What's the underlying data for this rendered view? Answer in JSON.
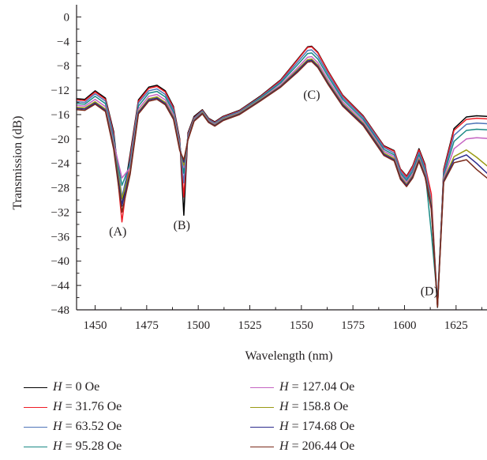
{
  "chart_data": {
    "type": "line",
    "title": "",
    "xlabel": "Wavelength (nm)",
    "ylabel": "Transmission (dB)",
    "xlim": [
      1441,
      1640
    ],
    "ylim": [
      -48,
      2
    ],
    "x_ticks": [
      1450,
      1475,
      1500,
      1525,
      1550,
      1575,
      1600,
      1625
    ],
    "y_ticks": [
      0,
      -4,
      -8,
      -12,
      -16,
      -20,
      -24,
      -28,
      -32,
      -36,
      -40,
      -44,
      -48
    ],
    "grid": false,
    "legend_position": "bottom",
    "annotations": [
      {
        "text": "(A)",
        "x": 1461,
        "y": -35.8
      },
      {
        "text": "(B)",
        "x": 1492,
        "y": -34.8
      },
      {
        "text": "(C)",
        "x": 1555,
        "y": -13.4
      },
      {
        "text": "(D)",
        "x": 1612,
        "y": -45.6
      }
    ],
    "x": [
      1441,
      1445,
      1450,
      1455,
      1459,
      1463,
      1467,
      1471,
      1476,
      1480,
      1484,
      1488,
      1491,
      1493,
      1495,
      1498,
      1502,
      1505,
      1508,
      1512,
      1520,
      1530,
      1540,
      1548,
      1553,
      1555,
      1558,
      1563,
      1570,
      1580,
      1590,
      1595,
      1598,
      1601,
      1604,
      1607,
      1610,
      1613,
      1616,
      1619,
      1624,
      1630,
      1635,
      1640
    ],
    "series": [
      {
        "name": "H = 0 Oe",
        "color": "#000000",
        "values": [
          -13.4,
          -13.5,
          -12.1,
          -13.3,
          -18.8,
          -31.0,
          -22.5,
          -13.6,
          -11.5,
          -11.2,
          -12.1,
          -14.7,
          -20.0,
          -32.5,
          -19.0,
          -16.3,
          -15.2,
          -16.6,
          -17.2,
          -16.3,
          -15.3,
          -13.0,
          -10.3,
          -7.0,
          -4.9,
          -4.8,
          -5.8,
          -8.9,
          -12.8,
          -16.2,
          -21.1,
          -21.9,
          -24.9,
          -26.1,
          -24.4,
          -21.6,
          -24.2,
          -30.8,
          -47.6,
          -25.0,
          -18.3,
          -16.4,
          -16.2,
          -16.3
        ]
      },
      {
        "name": "H = 31.76 Oe",
        "color": "#ee1c25",
        "values": [
          -13.6,
          -13.7,
          -12.3,
          -13.5,
          -19.2,
          -33.6,
          -23.0,
          -13.8,
          -11.7,
          -11.4,
          -12.3,
          -14.9,
          -20.3,
          -29.5,
          -19.2,
          -16.5,
          -15.3,
          -16.7,
          -17.3,
          -16.4,
          -15.4,
          -13.1,
          -10.4,
          -7.1,
          -5.0,
          -4.9,
          -5.9,
          -9.0,
          -12.9,
          -16.3,
          -21.2,
          -22.0,
          -25.0,
          -26.2,
          -24.5,
          -21.8,
          -24.4,
          -29.0,
          -47.4,
          -25.2,
          -18.6,
          -16.8,
          -16.6,
          -16.7
        ]
      },
      {
        "name": "H = 63.52 Oe",
        "color": "#4f75b8",
        "values": [
          -13.9,
          -14.0,
          -12.6,
          -13.8,
          -19.6,
          -29.5,
          -23.6,
          -14.1,
          -12.1,
          -11.8,
          -12.7,
          -15.2,
          -20.6,
          -27.2,
          -19.4,
          -16.6,
          -15.4,
          -16.8,
          -17.4,
          -16.5,
          -15.5,
          -13.2,
          -10.6,
          -7.5,
          -5.5,
          -5.4,
          -6.4,
          -9.4,
          -13.2,
          -16.5,
          -21.4,
          -22.3,
          -25.3,
          -26.5,
          -24.9,
          -22.2,
          -24.8,
          -30.2,
          -47.1,
          -25.6,
          -19.4,
          -17.6,
          -17.4,
          -17.5
        ]
      },
      {
        "name": "H = 95.28 Oe",
        "color": "#1a8a85",
        "values": [
          -14.2,
          -14.3,
          -13.0,
          -14.2,
          -20.1,
          -27.6,
          -24.1,
          -14.6,
          -12.5,
          -12.2,
          -13.1,
          -15.6,
          -20.9,
          -25.6,
          -19.6,
          -16.7,
          -15.5,
          -16.9,
          -17.5,
          -16.6,
          -15.6,
          -13.3,
          -10.8,
          -7.9,
          -6.0,
          -5.9,
          -6.9,
          -9.8,
          -13.5,
          -16.8,
          -21.7,
          -22.6,
          -25.6,
          -26.8,
          -25.3,
          -22.6,
          -25.2,
          -35.3,
          -46.5,
          -26.0,
          -20.4,
          -18.6,
          -18.4,
          -18.5
        ]
      },
      {
        "name": "H = 127.04 Oe",
        "color": "#c564c2",
        "values": [
          -14.5,
          -14.6,
          -13.5,
          -14.7,
          -20.6,
          -26.4,
          -24.7,
          -15.1,
          -13.0,
          -12.7,
          -13.6,
          -16.0,
          -21.2,
          -24.7,
          -19.8,
          -16.8,
          -15.6,
          -17.0,
          -17.6,
          -16.7,
          -15.7,
          -13.5,
          -11.1,
          -8.4,
          -6.6,
          -6.5,
          -7.5,
          -10.3,
          -13.9,
          -17.1,
          -22.0,
          -22.9,
          -25.9,
          -27.1,
          -25.7,
          -23.0,
          -25.6,
          -31.5,
          -46.9,
          -26.4,
          -21.6,
          -20.0,
          -19.8,
          -19.9
        ]
      },
      {
        "name": "H = 158.8 Oe",
        "color": "#9a9a14",
        "values": [
          -14.8,
          -14.9,
          -13.9,
          -15.1,
          -21.1,
          -29.8,
          -25.2,
          -15.5,
          -13.4,
          -13.1,
          -14.0,
          -16.4,
          -21.5,
          -24.3,
          -20.0,
          -16.9,
          -15.7,
          -17.1,
          -17.7,
          -16.8,
          -15.8,
          -13.6,
          -11.3,
          -8.7,
          -7.0,
          -6.9,
          -7.9,
          -10.7,
          -14.2,
          -17.4,
          -22.3,
          -23.2,
          -26.2,
          -27.4,
          -26.0,
          -23.3,
          -25.9,
          -30.6,
          -47.2,
          -26.7,
          -22.9,
          -21.8,
          -23.0,
          -24.4
        ]
      },
      {
        "name": "H = 174.68 Oe",
        "color": "#2b2a8c",
        "values": [
          -15.0,
          -15.1,
          -14.1,
          -15.3,
          -21.4,
          -30.9,
          -25.5,
          -15.7,
          -13.6,
          -13.3,
          -14.2,
          -16.6,
          -21.7,
          -23.8,
          -20.1,
          -17.0,
          -15.8,
          -17.2,
          -17.8,
          -16.9,
          -15.9,
          -13.7,
          -11.4,
          -8.9,
          -7.2,
          -7.1,
          -8.1,
          -10.9,
          -14.4,
          -17.6,
          -22.5,
          -23.4,
          -26.4,
          -27.6,
          -26.2,
          -23.5,
          -26.1,
          -31.0,
          -47.3,
          -26.9,
          -23.4,
          -22.6,
          -24.0,
          -25.6
        ]
      },
      {
        "name": "H = 206.44 Oe",
        "color": "#7b2a1a",
        "values": [
          -15.2,
          -15.3,
          -14.3,
          -15.5,
          -21.7,
          -32.0,
          -25.8,
          -15.9,
          -13.8,
          -13.5,
          -14.4,
          -16.8,
          -21.9,
          -23.4,
          -20.2,
          -17.1,
          -15.9,
          -17.3,
          -17.9,
          -17.0,
          -16.0,
          -13.8,
          -11.5,
          -9.1,
          -7.4,
          -7.3,
          -8.3,
          -11.1,
          -14.6,
          -17.8,
          -22.7,
          -23.6,
          -26.6,
          -27.8,
          -26.4,
          -23.7,
          -26.3,
          -31.5,
          -47.5,
          -27.1,
          -23.9,
          -23.4,
          -25.0,
          -26.4
        ]
      }
    ]
  },
  "legend": [
    {
      "var": "H",
      "rest": " = 0 Oe",
      "color": "#000000"
    },
    {
      "var": "H",
      "rest": " = 31.76 Oe",
      "color": "#ee1c25"
    },
    {
      "var": "H",
      "rest": " = 63.52 Oe",
      "color": "#4f75b8"
    },
    {
      "var": "H",
      "rest": " = 95.28 Oe",
      "color": "#1a8a85"
    },
    {
      "var": "H",
      "rest": " = 127.04 Oe",
      "color": "#c564c2"
    },
    {
      "var": "H",
      "rest": " = 158.8 Oe",
      "color": "#9a9a14"
    },
    {
      "var": "H",
      "rest": " = 174.68 Oe",
      "color": "#2b2a8c"
    },
    {
      "var": "H",
      "rest": " = 206.44 Oe",
      "color": "#7b2a1a"
    }
  ]
}
